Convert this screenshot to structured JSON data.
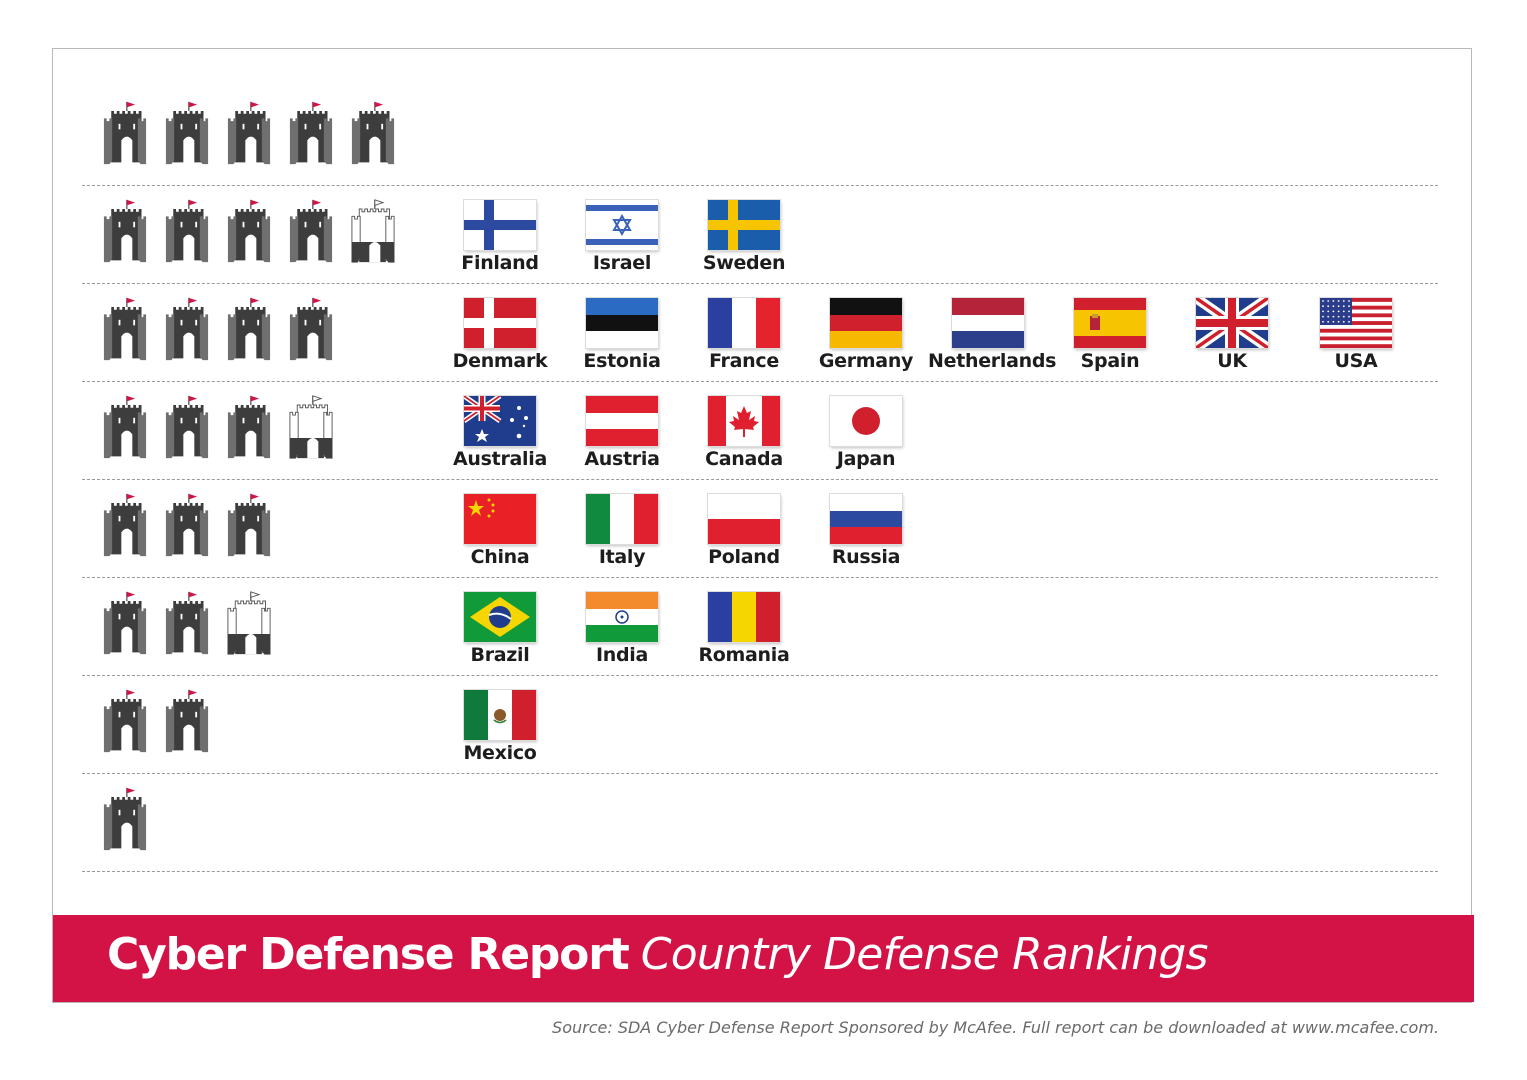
{
  "chart_data": {
    "type": "table",
    "title": "Cyber Defense Report",
    "subtitle": "Country Defense Rankings",
    "scale_max": 5,
    "tiers": [
      {
        "rating": 5.0,
        "countries": []
      },
      {
        "rating": 4.5,
        "countries": [
          {
            "name": "Finland",
            "flag": "finland-flag"
          },
          {
            "name": "Israel",
            "flag": "israel-flag"
          },
          {
            "name": "Sweden",
            "flag": "sweden-flag"
          }
        ]
      },
      {
        "rating": 4.0,
        "countries": [
          {
            "name": "Denmark",
            "flag": "denmark-flag"
          },
          {
            "name": "Estonia",
            "flag": "estonia-flag"
          },
          {
            "name": "France",
            "flag": "france-flag"
          },
          {
            "name": "Germany",
            "flag": "germany-flag"
          },
          {
            "name": "Netherlands",
            "flag": "netherlands-flag"
          },
          {
            "name": "Spain",
            "flag": "spain-flag"
          },
          {
            "name": "UK",
            "flag": "uk-flag"
          },
          {
            "name": "USA",
            "flag": "usa-flag"
          }
        ]
      },
      {
        "rating": 3.5,
        "countries": [
          {
            "name": "Australia",
            "flag": "australia-flag"
          },
          {
            "name": "Austria",
            "flag": "austria-flag"
          },
          {
            "name": "Canada",
            "flag": "canada-flag"
          },
          {
            "name": "Japan",
            "flag": "japan-flag"
          }
        ]
      },
      {
        "rating": 3.0,
        "countries": [
          {
            "name": "China",
            "flag": "china-flag"
          },
          {
            "name": "Italy",
            "flag": "italy-flag"
          },
          {
            "name": "Poland",
            "flag": "poland-flag"
          },
          {
            "name": "Russia",
            "flag": "russia-flag"
          }
        ]
      },
      {
        "rating": 2.5,
        "countries": [
          {
            "name": "Brazil",
            "flag": "brazil-flag"
          },
          {
            "name": "India",
            "flag": "india-flag"
          },
          {
            "name": "Romania",
            "flag": "romania-flag"
          }
        ]
      },
      {
        "rating": 2.0,
        "countries": [
          {
            "name": "Mexico",
            "flag": "mexico-flag"
          }
        ]
      },
      {
        "rating": 1.0,
        "countries": []
      }
    ]
  },
  "icons": {
    "full": "castle-icon",
    "half": "half-castle-icon"
  },
  "colors": {
    "banner": "#d31245",
    "castle_dark": "#3d3d3d",
    "castle_light": "#7a7a7a",
    "flag_pennant": "#d31245"
  },
  "footer": {
    "source": "Source: SDA Cyber Defense Report Sponsored by McAfee. Full report can be downloaded at www.mcafee.com."
  }
}
